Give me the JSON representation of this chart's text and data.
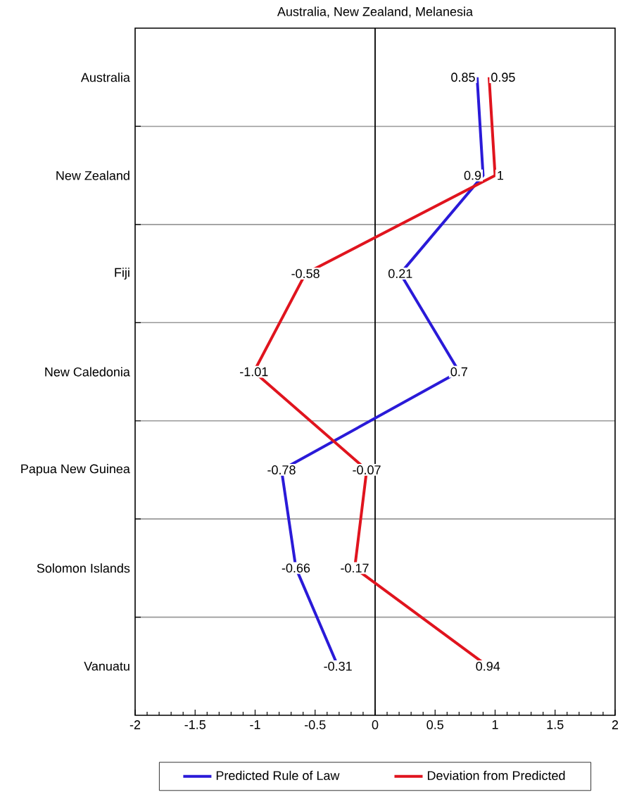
{
  "chart_data": {
    "type": "line",
    "orientation": "horizontal",
    "title": "Australia, New Zealand, Melanesia",
    "categories": [
      "Australia",
      "New Zealand",
      "Fiji",
      "New Caledonia",
      "Papua New Guinea",
      "Solomon Islands",
      "Vanuatu"
    ],
    "series": [
      {
        "name": "Predicted Rule of Law",
        "color": "#2a1ad8",
        "values": [
          0.85,
          0.9,
          0.21,
          0.7,
          -0.78,
          -0.66,
          -0.31
        ]
      },
      {
        "name": "Deviation from Predicted",
        "color": "#e0141e",
        "values": [
          0.95,
          1,
          -0.58,
          -1.01,
          -0.07,
          -0.17,
          0.94
        ]
      }
    ],
    "xlim": [
      -2,
      2
    ],
    "xticks": [
      -2,
      -1.5,
      -1,
      -0.5,
      0,
      0.5,
      1,
      1.5,
      2
    ],
    "grid": "y",
    "legend": "bottom",
    "data_labels": true,
    "ref_lines": [
      {
        "axis": "x",
        "value": 0,
        "color": "#000000"
      }
    ]
  }
}
